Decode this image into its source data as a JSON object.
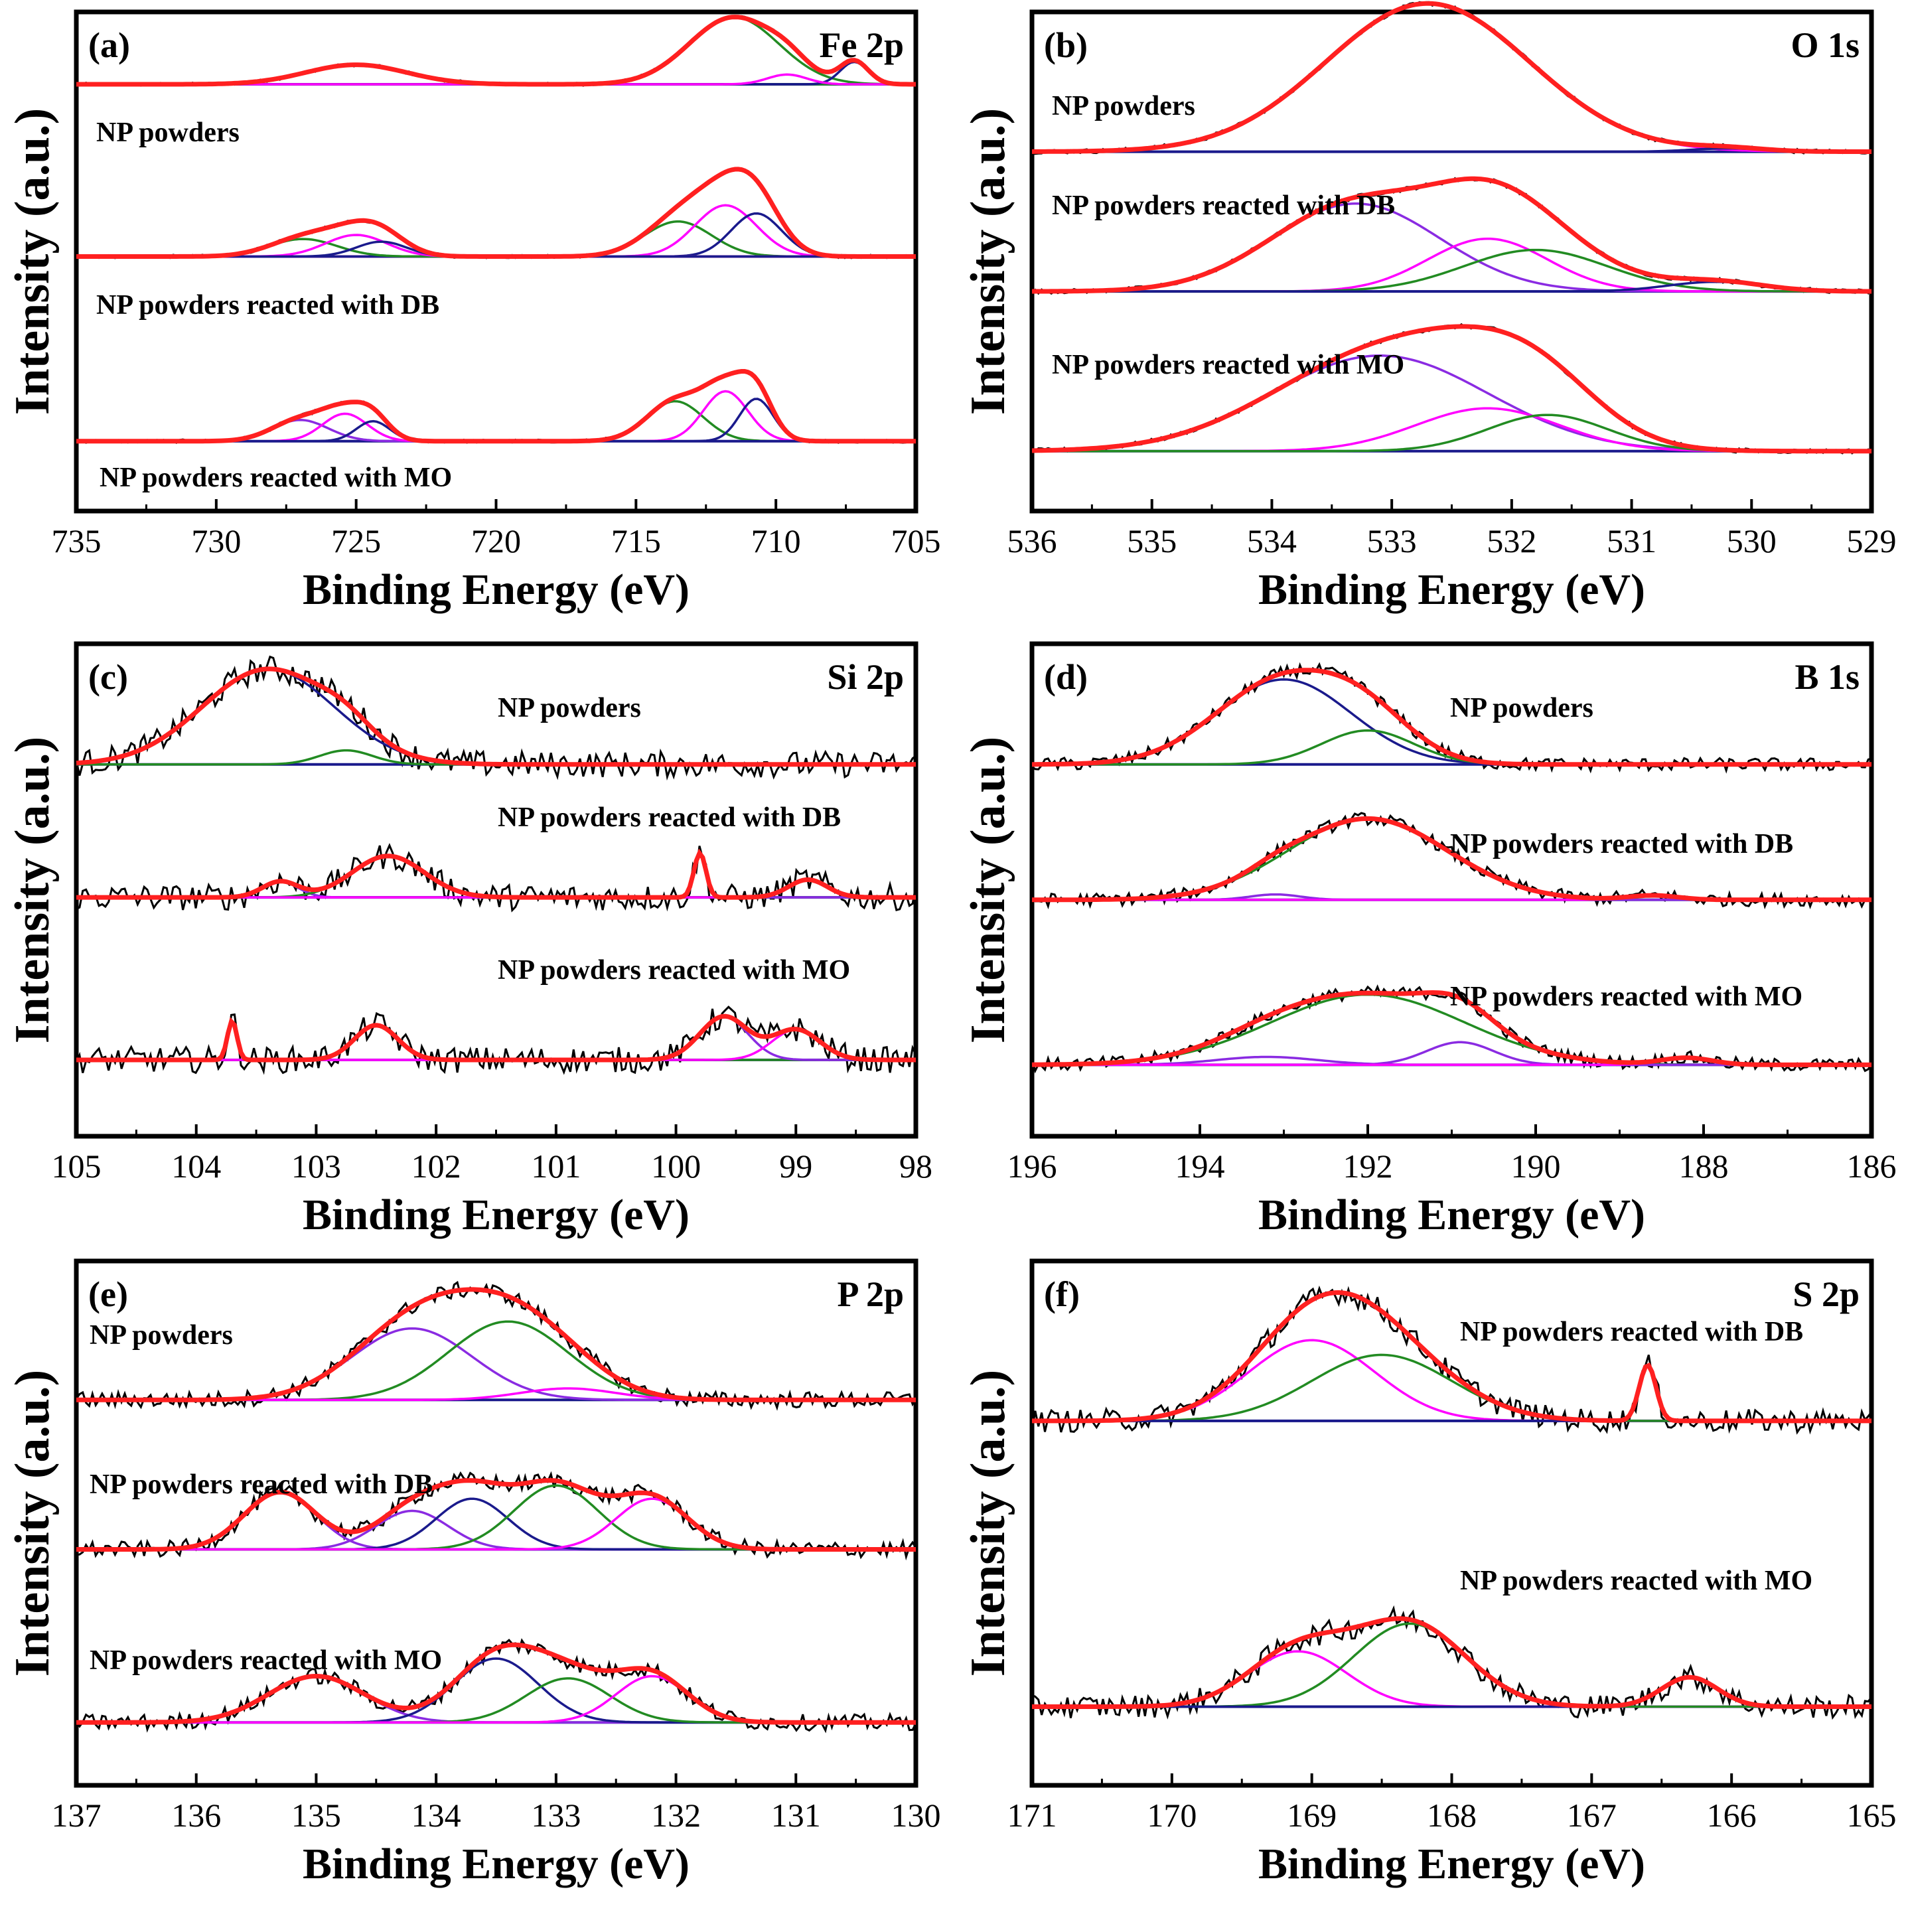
{
  "chart_data": [
    {
      "type": "line",
      "panel": "(a)",
      "element": "Fe 2p",
      "xlabel": "Binding Energy (eV)",
      "ylabel": "Intensity (a.u.)",
      "xlim": [
        735,
        705
      ],
      "xticks": [
        735,
        730,
        725,
        720,
        715,
        710,
        705
      ],
      "xtick_labels": [
        "735",
        "730",
        "725",
        "720",
        "715",
        "710",
        "705"
      ],
      "series": [
        {
          "name": "NP powders",
          "baseline": [
            0.0,
            0.0
          ],
          "components": [
            {
              "color": "#228B22",
              "center": 711.5,
              "height": 0.48,
              "width": 1.6
            },
            {
              "color": "#228B22",
              "center": 725.0,
              "height": 0.14,
              "width": 1.8
            },
            {
              "color": "#1a1a8c",
              "center": 707.2,
              "height": 0.16,
              "width": 0.5
            },
            {
              "color": "#ff00ff",
              "center": 709.6,
              "height": 0.07,
              "width": 0.7
            }
          ]
        },
        {
          "name": "NP powders reacted with DB",
          "baseline": [
            0.0,
            0.0
          ],
          "components": [
            {
              "color": "#228B22",
              "center": 713.5,
              "height": 0.26,
              "width": 1.2
            },
            {
              "color": "#ff00ff",
              "center": 711.8,
              "height": 0.38,
              "width": 1.1
            },
            {
              "color": "#1a1a8c",
              "center": 710.7,
              "height": 0.32,
              "width": 0.9
            },
            {
              "color": "#228B22",
              "center": 726.9,
              "height": 0.13,
              "width": 1.2
            },
            {
              "color": "#ff00ff",
              "center": 725.0,
              "height": 0.16,
              "width": 1.1
            },
            {
              "color": "#1a1a8c",
              "center": 724.1,
              "height": 0.11,
              "width": 0.9
            }
          ]
        },
        {
          "name": "NP powders reacted with MO",
          "baseline": [
            0.0,
            0.0
          ],
          "components": [
            {
              "color": "#228B22",
              "center": 713.6,
              "height": 0.32,
              "width": 1.0
            },
            {
              "color": "#ff00ff",
              "center": 711.8,
              "height": 0.4,
              "width": 0.8
            },
            {
              "color": "#1a1a8c",
              "center": 710.7,
              "height": 0.34,
              "width": 0.6
            },
            {
              "color": "#8a2be2",
              "center": 727.0,
              "height": 0.17,
              "width": 1.0
            },
            {
              "color": "#ff00ff",
              "center": 725.4,
              "height": 0.22,
              "width": 0.8
            },
            {
              "color": "#1a1a8c",
              "center": 724.4,
              "height": 0.16,
              "width": 0.6
            }
          ]
        }
      ]
    },
    {
      "type": "line",
      "panel": "(b)",
      "element": "O 1s",
      "xlabel": "Binding Energy (eV)",
      "ylabel": "Intensity (a.u.)",
      "xlim": [
        536,
        529
      ],
      "xticks": [
        536,
        535,
        534,
        533,
        532,
        531,
        530,
        529
      ],
      "xtick_labels": [
        "536",
        "535",
        "534",
        "533",
        "532",
        "531",
        "530",
        "529"
      ],
      "series": [
        {
          "name": "NP powders",
          "baseline": [
            0.0,
            0.0
          ],
          "components": [
            {
              "color": "#ff00ff",
              "center": 532.7,
              "height": 0.9,
              "width": 0.85
            },
            {
              "color": "#1a1a8c",
              "center": 530.2,
              "height": 0.02,
              "width": 0.3
            }
          ]
        },
        {
          "name": "NP powders reacted with DB",
          "baseline": [
            0.0,
            0.0
          ],
          "components": [
            {
              "color": "#8a2be2",
              "center": 533.3,
              "height": 0.55,
              "width": 0.7
            },
            {
              "color": "#ff00ff",
              "center": 532.2,
              "height": 0.33,
              "width": 0.5
            },
            {
              "color": "#228B22",
              "center": 531.8,
              "height": 0.26,
              "width": 0.6
            },
            {
              "color": "#1a1a8c",
              "center": 530.3,
              "height": 0.06,
              "width": 0.4
            }
          ]
        },
        {
          "name": "NP powders reacted with MO",
          "baseline": [
            0.0,
            0.0
          ],
          "components": [
            {
              "color": "#8a2be2",
              "center": 533.1,
              "height": 0.58,
              "width": 0.9
            },
            {
              "color": "#ff00ff",
              "center": 532.2,
              "height": 0.26,
              "width": 0.6
            },
            {
              "color": "#228B22",
              "center": 531.7,
              "height": 0.22,
              "width": 0.5
            }
          ]
        }
      ]
    },
    {
      "type": "line",
      "panel": "(c)",
      "element": "Si 2p",
      "xlabel": "Binding Energy (eV)",
      "ylabel": "Intensity (a.u.)",
      "xlim": [
        105,
        98
      ],
      "xticks": [
        105,
        104,
        103,
        102,
        101,
        100,
        99,
        98
      ],
      "xtick_labels": [
        "105",
        "104",
        "103",
        "102",
        "101",
        "100",
        "99",
        "98"
      ],
      "series": [
        {
          "name": "NP powders",
          "baseline": [
            0.0,
            0.0
          ],
          "components": [
            {
              "color": "#1a1a8c",
              "center": 103.4,
              "height": 0.88,
              "width": 0.55
            },
            {
              "color": "#228B22",
              "center": 102.75,
              "height": 0.13,
              "width": 0.22
            }
          ]
        },
        {
          "name": "NP powders reacted with DB",
          "baseline": [
            0.0,
            0.0
          ],
          "components": [
            {
              "color": "#8a2be2",
              "center": 103.3,
              "height": 0.16,
              "width": 0.15
            },
            {
              "color": "#228B22",
              "center": 102.4,
              "height": 0.42,
              "width": 0.3
            },
            {
              "color": "#8a2be2",
              "center": 99.8,
              "height": 0.45,
              "width": 0.05
            },
            {
              "color": "#ff00ff",
              "center": 98.9,
              "height": 0.18,
              "width": 0.16
            }
          ]
        },
        {
          "name": "NP powders reacted with MO",
          "baseline": [
            0.0,
            0.0
          ],
          "components": [
            {
              "color": "#8a2be2",
              "center": 103.7,
              "height": 0.36,
              "width": 0.04
            },
            {
              "color": "#228B22",
              "center": 102.5,
              "height": 0.32,
              "width": 0.18
            },
            {
              "color": "#8a2be2",
              "center": 99.6,
              "height": 0.4,
              "width": 0.2
            },
            {
              "color": "#ff00ff",
              "center": 99.0,
              "height": 0.28,
              "width": 0.2
            }
          ]
        }
      ]
    },
    {
      "type": "line",
      "panel": "(d)",
      "element": "B 1s",
      "xlabel": "Binding Energy (eV)",
      "ylabel": "Intensity (a.u.)",
      "xlim": [
        196,
        186
      ],
      "xticks": [
        196,
        194,
        192,
        190,
        188,
        186
      ],
      "xtick_labels": [
        "196",
        "194",
        "192",
        "190",
        "188",
        "186"
      ],
      "series": [
        {
          "name": "NP powders",
          "baseline": [
            0.0,
            0.0
          ],
          "components": [
            {
              "color": "#1a1a8c",
              "center": 193.0,
              "height": 0.75,
              "width": 0.8
            },
            {
              "color": "#228B22",
              "center": 192.0,
              "height": 0.3,
              "width": 0.55
            }
          ]
        },
        {
          "name": "NP powders reacted with DB",
          "baseline": [
            0.0,
            0.0
          ],
          "components": [
            {
              "color": "#228B22",
              "center": 192.0,
              "height": 0.75,
              "width": 0.95
            },
            {
              "color": "#8a2be2",
              "center": 193.1,
              "height": 0.05,
              "width": 0.3
            },
            {
              "color": "#ff00ff",
              "center": 188.6,
              "height": 0.04,
              "width": 0.3
            }
          ]
        },
        {
          "name": "NP powders reacted with MO",
          "baseline": [
            0.0,
            0.0
          ],
          "components": [
            {
              "color": "#228B22",
              "center": 192.0,
              "height": 0.62,
              "width": 1.15
            },
            {
              "color": "#8a2be2",
              "center": 190.9,
              "height": 0.2,
              "width": 0.4
            },
            {
              "color": "#8a2be2",
              "center": 193.2,
              "height": 0.07,
              "width": 0.6
            },
            {
              "color": "#ff00ff",
              "center": 188.2,
              "height": 0.06,
              "width": 0.3
            }
          ]
        }
      ]
    },
    {
      "type": "line",
      "panel": "(e)",
      "element": "P 2p",
      "xlabel": "Binding Energy (eV)",
      "ylabel": "Intensity (a.u.)",
      "xlim": [
        137,
        130
      ],
      "xticks": [
        137,
        136,
        135,
        134,
        133,
        132,
        131,
        130
      ],
      "xtick_labels": [
        "137",
        "136",
        "135",
        "134",
        "133",
        "132",
        "131",
        "130"
      ],
      "series": [
        {
          "name": "NP powders",
          "baseline": [
            0.0,
            0.0
          ],
          "components": [
            {
              "color": "#8a2be2",
              "center": 134.2,
              "height": 0.62,
              "width": 0.5
            },
            {
              "color": "#228B22",
              "center": 133.4,
              "height": 0.68,
              "width": 0.5
            },
            {
              "color": "#ff00ff",
              "center": 132.9,
              "height": 0.1,
              "width": 0.4
            }
          ]
        },
        {
          "name": "NP powders reacted with DB",
          "baseline": [
            0.0,
            0.0
          ],
          "components": [
            {
              "color": "#8a2be2",
              "center": 135.3,
              "height": 0.52,
              "width": 0.3
            },
            {
              "color": "#8a2be2",
              "center": 134.2,
              "height": 0.35,
              "width": 0.3
            },
            {
              "color": "#1a1a8c",
              "center": 133.7,
              "height": 0.46,
              "width": 0.3
            },
            {
              "color": "#228B22",
              "center": 133.0,
              "height": 0.58,
              "width": 0.35
            },
            {
              "color": "#ff00ff",
              "center": 132.2,
              "height": 0.46,
              "width": 0.3
            }
          ]
        },
        {
          "name": "NP powders reacted with MO",
          "baseline": [
            0.0,
            0.0
          ],
          "components": [
            {
              "color": "#8a2be2",
              "center": 135.0,
              "height": 0.42,
              "width": 0.4
            },
            {
              "color": "#1a1a8c",
              "center": 133.5,
              "height": 0.58,
              "width": 0.35
            },
            {
              "color": "#228B22",
              "center": 132.9,
              "height": 0.4,
              "width": 0.35
            },
            {
              "color": "#ff00ff",
              "center": 132.2,
              "height": 0.42,
              "width": 0.3
            }
          ]
        }
      ]
    },
    {
      "type": "line",
      "panel": "(f)",
      "element": "S 2p",
      "xlabel": "Binding Energy (eV)",
      "ylabel": "Intensity (a.u.)",
      "xlim": [
        171,
        165
      ],
      "xticks": [
        171,
        170,
        169,
        168,
        167,
        166,
        165
      ],
      "xtick_labels": [
        "171",
        "170",
        "169",
        "168",
        "167",
        "166",
        "165"
      ],
      "series": [
        {
          "name": "NP powders reacted with DB",
          "baseline": [
            0.0,
            0.0
          ],
          "components": [
            {
              "color": "#ff00ff",
              "center": 169.0,
              "height": 0.55,
              "width": 0.45
            },
            {
              "color": "#228B22",
              "center": 168.5,
              "height": 0.45,
              "width": 0.5
            },
            {
              "color": "#1a1a8c",
              "center": 166.6,
              "height": 0.38,
              "width": 0.06
            }
          ]
        },
        {
          "name": "NP powders reacted with MO",
          "baseline": [
            0.0,
            0.0
          ],
          "components": [
            {
              "color": "#ff00ff",
              "center": 169.1,
              "height": 0.32,
              "width": 0.35
            },
            {
              "color": "#228B22",
              "center": 168.3,
              "height": 0.48,
              "width": 0.4
            },
            {
              "color": "#1a1a8c",
              "center": 166.3,
              "height": 0.17,
              "width": 0.2
            }
          ]
        }
      ]
    }
  ]
}
